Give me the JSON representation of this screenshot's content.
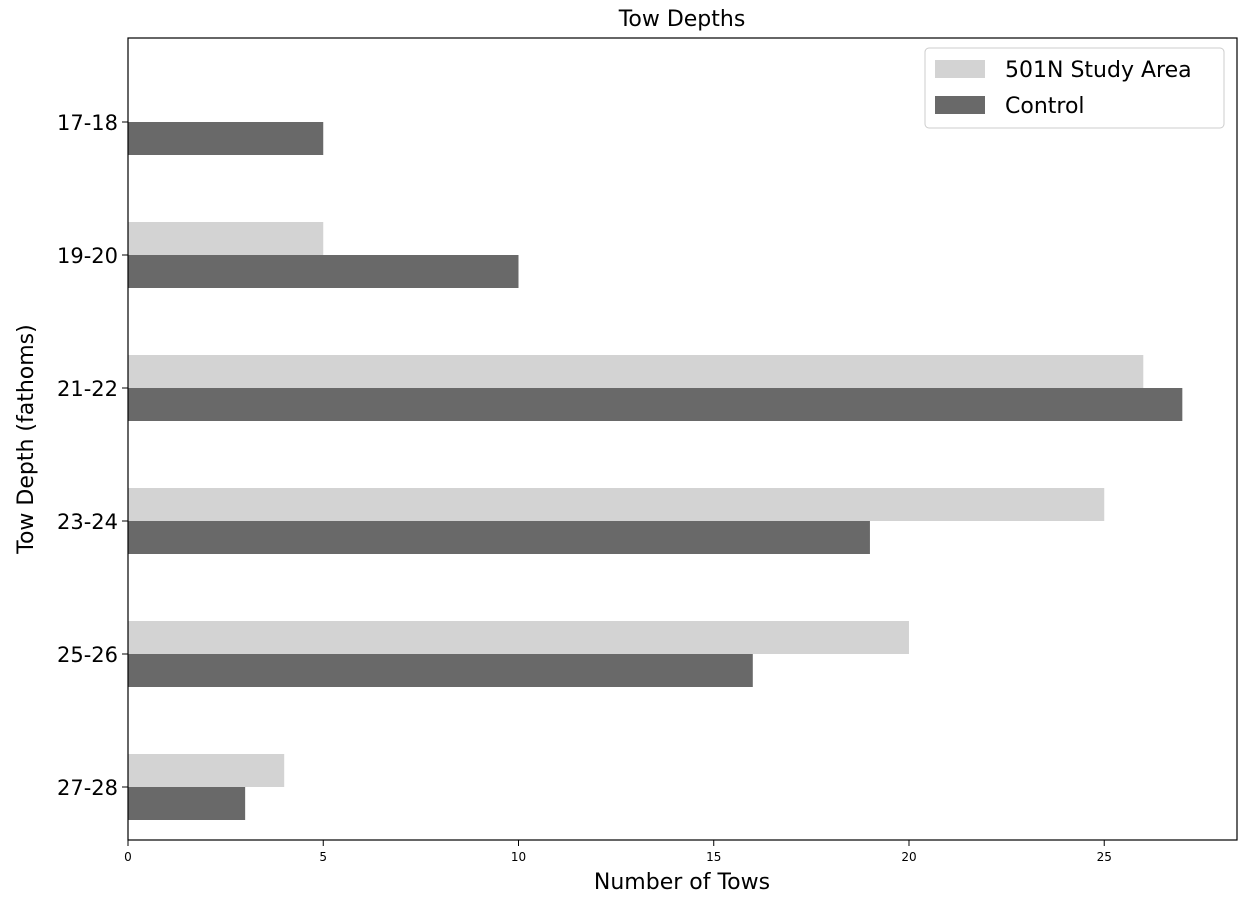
{
  "chart_data": {
    "type": "bar",
    "orientation": "horizontal",
    "title": "Tow Depths",
    "xlabel": "Number of Tows",
    "ylabel": "Tow Depth (fathoms)",
    "categories": [
      "17-18",
      "19-20",
      "21-22",
      "23-24",
      "25-26",
      "27-28"
    ],
    "xlim": [
      0,
      28.4
    ],
    "xticks": [
      0,
      5,
      10,
      15,
      20,
      25
    ],
    "grid": false,
    "legend_position": "top-right",
    "series": [
      {
        "name": "501N Study Area",
        "color": "#d3d3d3",
        "values": [
          0,
          5,
          26,
          25,
          20,
          4
        ]
      },
      {
        "name": "Control",
        "color": "#696969",
        "values": [
          5,
          10,
          27,
          19,
          16,
          3
        ]
      }
    ]
  }
}
